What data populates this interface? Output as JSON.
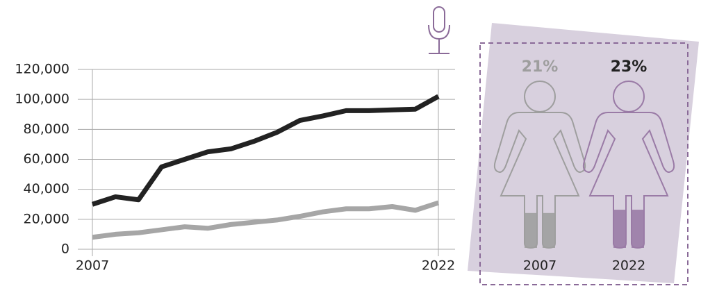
{
  "chart_data": [
    {
      "type": "line",
      "x": [
        2007,
        2008,
        2009,
        2010,
        2011,
        2012,
        2013,
        2014,
        2015,
        2016,
        2017,
        2018,
        2019,
        2020,
        2021,
        2022
      ],
      "series": [
        {
          "color": "#222222",
          "values": [
            30000,
            35000,
            33000,
            55000,
            60000,
            65000,
            67000,
            72000,
            78000,
            86000,
            89000,
            92500,
            92500,
            93000,
            93500,
            102000
          ]
        },
        {
          "color": "#a6a6a6",
          "values": [
            8000,
            10000,
            11000,
            13000,
            15000,
            14000,
            16500,
            18000,
            19500,
            22000,
            25000,
            27000,
            27000,
            28500,
            26000,
            31000
          ]
        }
      ],
      "xlim": [
        2007,
        2022
      ],
      "xticks": [
        2007,
        2022
      ],
      "ylim": [
        0,
        120000
      ],
      "yticks": [
        0,
        {
          "value": 20000,
          "label": "20,000"
        },
        {
          "value": 40000,
          "label": "40,000"
        },
        {
          "value": 60000,
          "label": "60,000"
        },
        {
          "value": 80000,
          "label": "80,000"
        },
        {
          "value": 100000,
          "label": "100,000"
        },
        {
          "value": 120000,
          "label": "120,000"
        }
      ],
      "grid": true
    },
    {
      "type": "pictogram",
      "categories": [
        "2007",
        "2022"
      ],
      "values": [
        21,
        23
      ],
      "value_labels": [
        "21%",
        "23%"
      ],
      "colors": [
        "#9e9e9e",
        "#9a7ba6"
      ],
      "label_colors": [
        "#9e9e9e",
        "#222222"
      ]
    }
  ]
}
